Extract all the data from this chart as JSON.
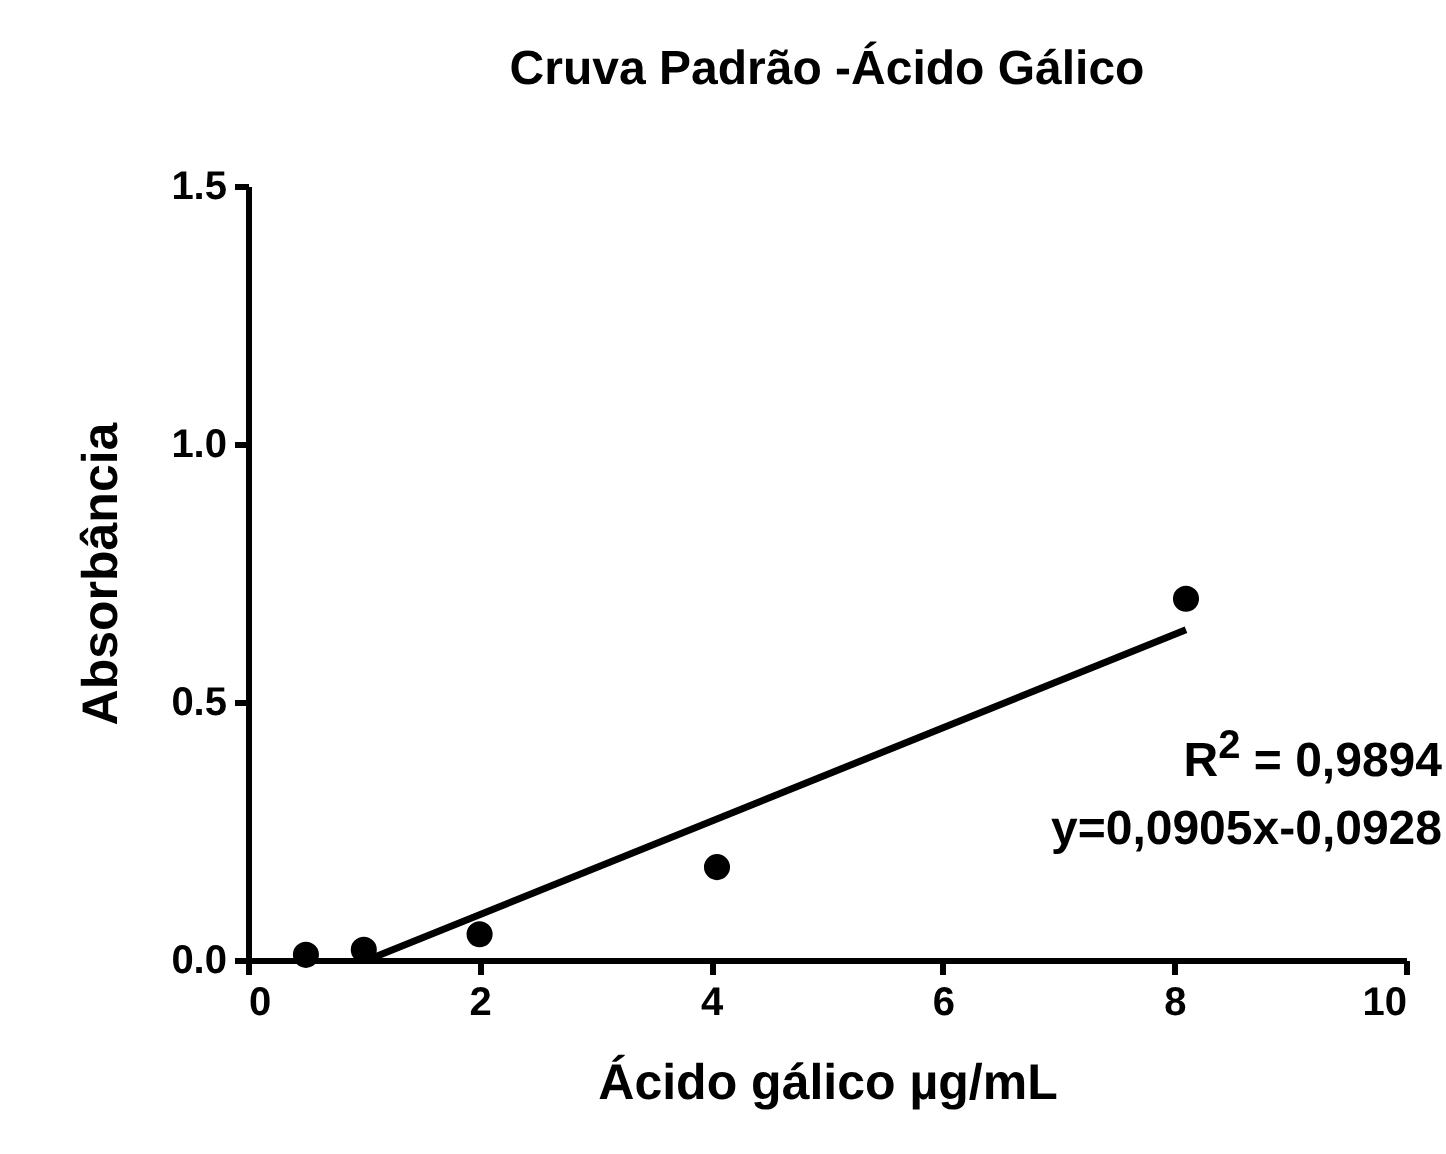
{
  "chart_data": {
    "type": "scatter",
    "title": "Cruva Padrão -Ácido Gálico",
    "xlabel": "Ácido gálico µg/mL",
    "ylabel": "Absorbância",
    "xlim": [
      0,
      10
    ],
    "xticks": [
      0,
      2,
      4,
      6,
      8,
      10
    ],
    "ylim": [
      0,
      1.5
    ],
    "yticks": [
      {
        "value": 0,
        "label": "0.0"
      },
      {
        "value": 0.5,
        "label": "0.5"
      },
      {
        "value": 1,
        "label": "1.0"
      },
      {
        "value": 1.5,
        "label": "1.5"
      }
    ],
    "grid": false,
    "series": [
      {
        "color": "#000000",
        "marker": "circle",
        "x": [
          0.5,
          1,
          2,
          4.05,
          8.1
        ],
        "values": [
          0.01,
          0.02,
          0.05,
          0.18,
          0.7
        ]
      },
      {
        "type": "line",
        "color": "#000000",
        "x": [
          1.03,
          8.1
        ],
        "values": [
          0,
          0.64
        ]
      }
    ],
    "annotations": [
      "R$^{2}$ = 0,9894",
      "y=0,0905x-0,0928"
    ]
  }
}
